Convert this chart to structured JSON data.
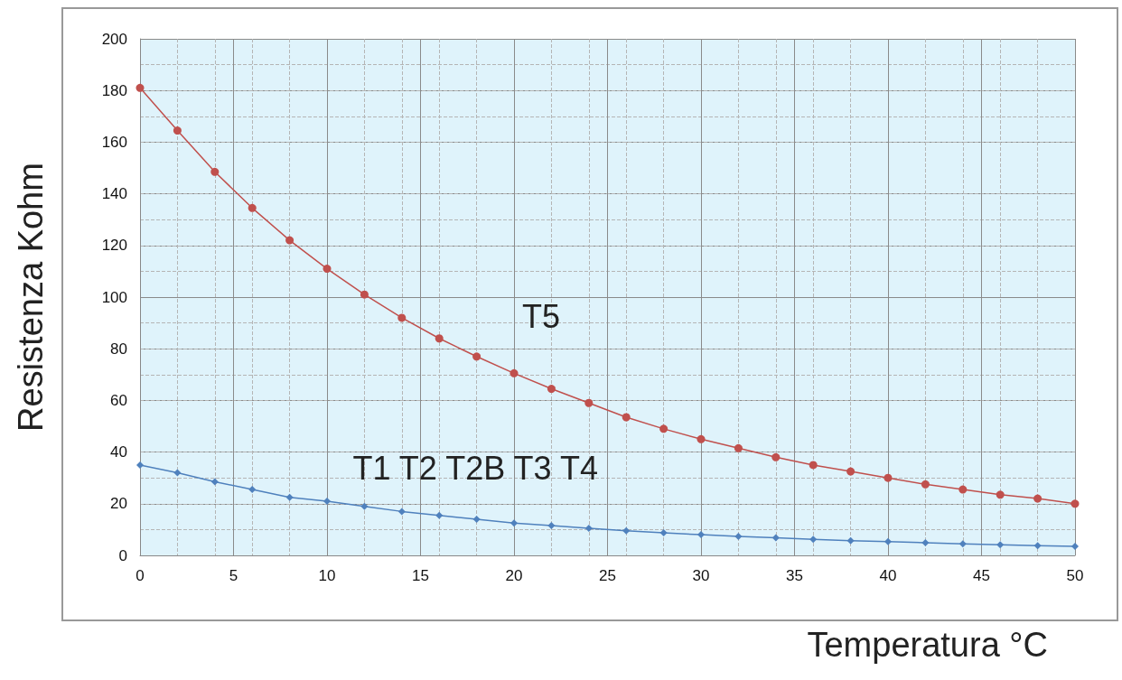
{
  "chart_data": {
    "type": "line",
    "xlabel": "Temperatura °C",
    "ylabel": "Resistenza Kohm",
    "x": [
      0,
      2,
      4,
      6,
      8,
      10,
      12,
      14,
      16,
      18,
      20,
      22,
      24,
      26,
      28,
      30,
      32,
      34,
      36,
      38,
      40,
      42,
      44,
      46,
      48,
      50
    ],
    "series": [
      {
        "name": "T5",
        "color": "#c0504d",
        "marker": "circle",
        "values": [
          181,
          164.5,
          148.5,
          134.5,
          122,
          111,
          101,
          92,
          84,
          77,
          70.5,
          64.5,
          59,
          53.5,
          49,
          45,
          41.5,
          38,
          35,
          32.5,
          30,
          27.5,
          25.5,
          23.5,
          22,
          20
        ]
      },
      {
        "name": "T1 T2 T2B T3 T4",
        "color": "#4f81bd",
        "marker": "diamond",
        "values": [
          35,
          32,
          28.5,
          25.5,
          22.5,
          21,
          19,
          17,
          15.5,
          14,
          12.5,
          11.5,
          10.5,
          9.5,
          8.7,
          8,
          7.3,
          6.8,
          6.2,
          5.7,
          5.3,
          4.9,
          4.5,
          4.1,
          3.8,
          3.5
        ]
      }
    ],
    "xlim": [
      0,
      50
    ],
    "xticks": [
      0,
      5,
      10,
      15,
      20,
      25,
      30,
      35,
      40,
      45,
      50
    ],
    "ylim": [
      0,
      200
    ],
    "yticks": [
      0,
      20,
      40,
      60,
      80,
      100,
      120,
      140,
      160,
      180,
      200
    ],
    "grid": true,
    "legend": false,
    "line_style": "solid"
  }
}
